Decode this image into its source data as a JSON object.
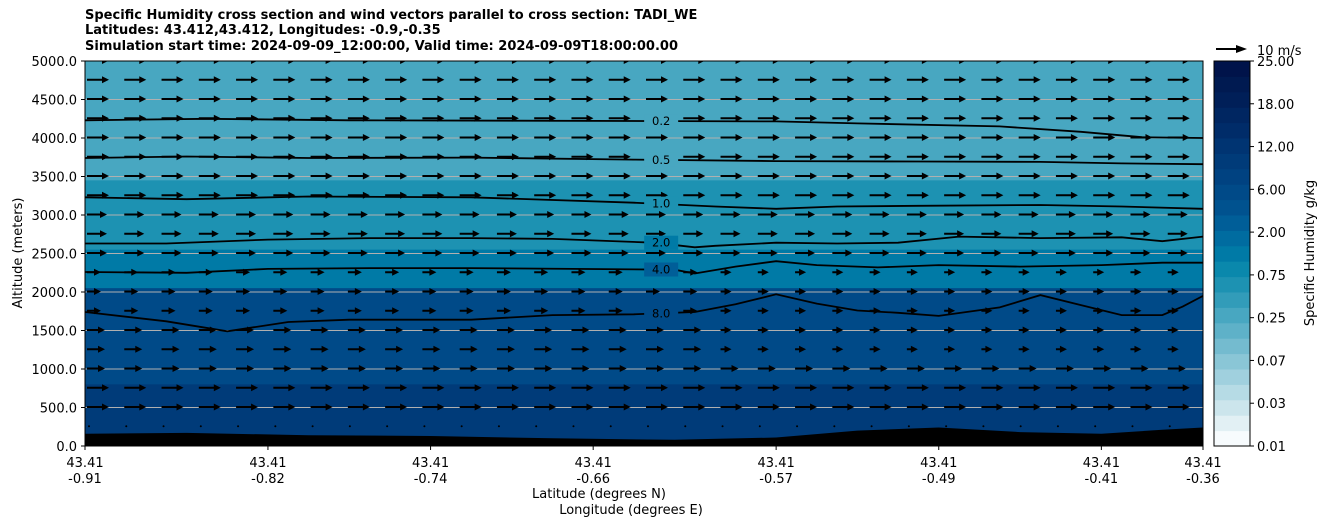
{
  "chart_data": {
    "type": "contour",
    "title_lines": [
      "Specific Humidity cross section and wind vectors parallel to cross section: TADI_WE",
      "Latitudes: 43.412,43.412, Longitudes: -0.9,-0.35",
      "Simulation start time: 2024-09-09_12:00:00, Valid time: 2024-09-09T18:00:00.00"
    ],
    "ylabel": "Altitude (meters)",
    "xlabel_lat": "Latitude (degrees N)",
    "xlabel_lon": "Longitude (degrees E)",
    "ylim": [
      0,
      5000
    ],
    "y_ticks": [
      "0.0",
      "500.0",
      "1000.0",
      "1500.0",
      "2000.0",
      "2500.0",
      "3000.0",
      "3500.0",
      "4000.0",
      "4500.0",
      "5000.0"
    ],
    "x_ticks": [
      {
        "lat": "43.41",
        "lon": "-0.91"
      },
      {
        "lat": "43.41",
        "lon": "-0.82"
      },
      {
        "lat": "43.41",
        "lon": "-0.74"
      },
      {
        "lat": "43.41",
        "lon": "-0.66"
      },
      {
        "lat": "43.41",
        "lon": "-0.57"
      },
      {
        "lat": "43.41",
        "lon": "-0.49"
      },
      {
        "lat": "43.41",
        "lon": "-0.41"
      },
      {
        "lat": "43.41",
        "lon": "-0.36"
      }
    ],
    "x_tick_lons": [
      -0.91,
      -0.82,
      -0.74,
      -0.66,
      -0.57,
      -0.49,
      -0.41,
      -0.36
    ],
    "lon_range": [
      -0.91,
      -0.36
    ],
    "grid": true,
    "contour_labels": [
      "0.2",
      "0.5",
      "1.0",
      "2.0",
      "4.0",
      "8.0"
    ],
    "contours": [
      {
        "label": "0.2",
        "points": [
          [
            -0.91,
            4230
          ],
          [
            -0.85,
            4250
          ],
          [
            -0.78,
            4230
          ],
          [
            -0.7,
            4225
          ],
          [
            -0.62,
            4220
          ],
          [
            -0.57,
            4215
          ],
          [
            -0.53,
            4190
          ],
          [
            -0.46,
            4150
          ],
          [
            -0.42,
            4080
          ],
          [
            -0.39,
            4010
          ],
          [
            -0.36,
            4000
          ]
        ]
      },
      {
        "label": "0.5",
        "points": [
          [
            -0.91,
            3740
          ],
          [
            -0.86,
            3760
          ],
          [
            -0.8,
            3740
          ],
          [
            -0.72,
            3745
          ],
          [
            -0.64,
            3720
          ],
          [
            -0.57,
            3700
          ],
          [
            -0.5,
            3695
          ],
          [
            -0.44,
            3690
          ],
          [
            -0.4,
            3670
          ],
          [
            -0.36,
            3660
          ]
        ]
      },
      {
        "label": "1.0",
        "points": [
          [
            -0.91,
            3230
          ],
          [
            -0.86,
            3205
          ],
          [
            -0.8,
            3240
          ],
          [
            -0.72,
            3230
          ],
          [
            -0.64,
            3160
          ],
          [
            -0.6,
            3110
          ],
          [
            -0.57,
            3080
          ],
          [
            -0.54,
            3110
          ],
          [
            -0.5,
            3120
          ],
          [
            -0.44,
            3130
          ],
          [
            -0.4,
            3110
          ],
          [
            -0.36,
            3080
          ]
        ]
      },
      {
        "label": "2.0",
        "points": [
          [
            -0.91,
            2630
          ],
          [
            -0.87,
            2630
          ],
          [
            -0.82,
            2680
          ],
          [
            -0.77,
            2700
          ],
          [
            -0.72,
            2700
          ],
          [
            -0.68,
            2690
          ],
          [
            -0.63,
            2640
          ],
          [
            -0.61,
            2580
          ],
          [
            -0.6,
            2600
          ],
          [
            -0.57,
            2640
          ],
          [
            -0.54,
            2630
          ],
          [
            -0.51,
            2640
          ],
          [
            -0.48,
            2720
          ],
          [
            -0.44,
            2700
          ],
          [
            -0.4,
            2710
          ],
          [
            -0.38,
            2660
          ],
          [
            -0.36,
            2720
          ]
        ]
      },
      {
        "label": "4.0",
        "points": [
          [
            -0.91,
            2260
          ],
          [
            -0.86,
            2250
          ],
          [
            -0.82,
            2300
          ],
          [
            -0.77,
            2310
          ],
          [
            -0.72,
            2310
          ],
          [
            -0.67,
            2300
          ],
          [
            -0.62,
            2290
          ],
          [
            -0.61,
            2240
          ],
          [
            -0.59,
            2330
          ],
          [
            -0.57,
            2400
          ],
          [
            -0.55,
            2350
          ],
          [
            -0.52,
            2320
          ],
          [
            -0.49,
            2350
          ],
          [
            -0.45,
            2330
          ],
          [
            -0.41,
            2350
          ],
          [
            -0.38,
            2380
          ],
          [
            -0.36,
            2380
          ]
        ]
      },
      {
        "label": "8.0",
        "points": [
          [
            -0.91,
            1740
          ],
          [
            -0.87,
            1620
          ],
          [
            -0.84,
            1490
          ],
          [
            -0.81,
            1610
          ],
          [
            -0.78,
            1640
          ],
          [
            -0.72,
            1640
          ],
          [
            -0.68,
            1700
          ],
          [
            -0.64,
            1710
          ],
          [
            -0.61,
            1740
          ],
          [
            -0.59,
            1840
          ],
          [
            -0.57,
            1970
          ],
          [
            -0.55,
            1850
          ],
          [
            -0.53,
            1760
          ],
          [
            -0.51,
            1730
          ],
          [
            -0.49,
            1690
          ],
          [
            -0.46,
            1800
          ],
          [
            -0.44,
            1960
          ],
          [
            -0.42,
            1830
          ],
          [
            -0.4,
            1700
          ],
          [
            -0.38,
            1700
          ],
          [
            -0.37,
            1810
          ],
          [
            -0.36,
            1950
          ]
        ]
      }
    ],
    "terrain": [
      [
        -0.91,
        160
      ],
      [
        -0.86,
        170
      ],
      [
        -0.8,
        140
      ],
      [
        -0.74,
        130
      ],
      [
        -0.68,
        100
      ],
      [
        -0.62,
        80
      ],
      [
        -0.57,
        110
      ],
      [
        -0.53,
        200
      ],
      [
        -0.49,
        240
      ],
      [
        -0.45,
        180
      ],
      [
        -0.41,
        160
      ],
      [
        -0.38,
        210
      ],
      [
        -0.36,
        240
      ]
    ],
    "colorbar": {
      "label": "Specific Humidity g/kg",
      "tick_labels": [
        "0.01",
        "0.03",
        "0.07",
        "0.25",
        "0.75",
        "2.00",
        "6.00",
        "12.00",
        "18.00",
        "25.00"
      ],
      "colors": [
        "#f7fbfd",
        "#e2f0f4",
        "#cce5ec",
        "#b6dbe5",
        "#a0d0de",
        "#8ac6d6",
        "#74bbcf",
        "#5eb1c8",
        "#48a7c1",
        "#329cb9",
        "#1d92b2",
        "#0a88ac",
        "#007aa6",
        "#006ca0",
        "#005e98",
        "#00528f",
        "#004a88",
        "#004281",
        "#003b79",
        "#003472",
        "#002c69",
        "#002661",
        "#001f58",
        "#001a51",
        "#00134a"
      ]
    },
    "humidity_bands": [
      {
        "alt_top": 5000,
        "color_index": 8
      },
      {
        "alt_top": 3450,
        "color_index": 10
      },
      {
        "alt_top": 2550,
        "color_index": 12
      },
      {
        "alt_top": 2050,
        "color_index": 16
      },
      {
        "alt_top": 800,
        "color_index": 18
      }
    ],
    "quiver_key_label": "10 m/s"
  }
}
